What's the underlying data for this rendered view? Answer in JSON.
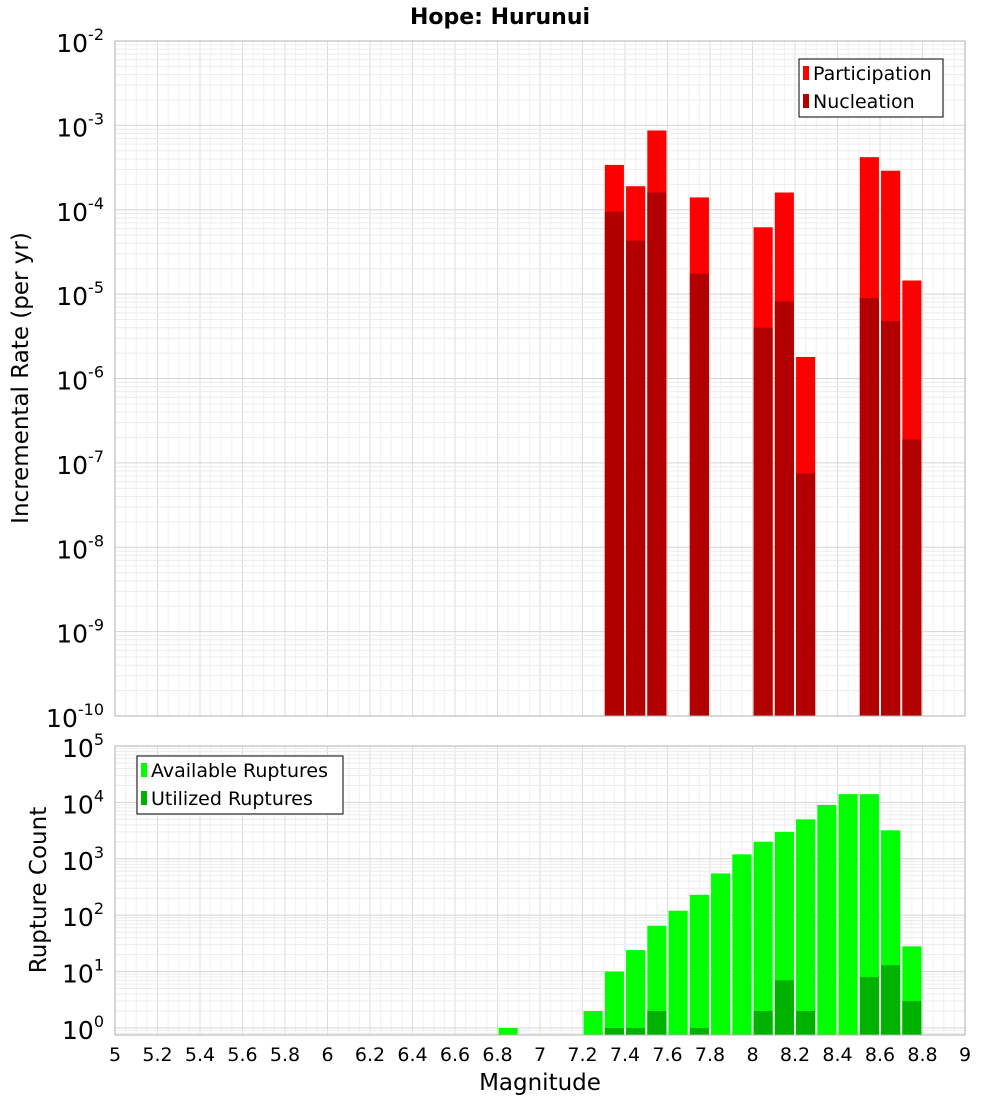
{
  "chart_data": [
    {
      "type": "bar",
      "title": "Hope: Hurunui",
      "ylabel": "Incremental Rate (per yr)",
      "xlabel": "",
      "xlim": [
        5,
        9
      ],
      "ylim": [
        1e-10,
        0.01
      ],
      "y_scale": "log",
      "y_tick_labels": [
        {
          "base": "10",
          "exp": "-2"
        },
        {
          "base": "10",
          "exp": "-3"
        },
        {
          "base": "10",
          "exp": "-4"
        },
        {
          "base": "10",
          "exp": "-5"
        },
        {
          "base": "10",
          "exp": "-6"
        },
        {
          "base": "10",
          "exp": "-7"
        },
        {
          "base": "10",
          "exp": "-8"
        },
        {
          "base": "10",
          "exp": "-9"
        },
        {
          "base": "10",
          "exp": "-10"
        }
      ],
      "grid": true,
      "legend_position": "top-right",
      "x": [
        7.35,
        7.45,
        7.55,
        7.75,
        8.05,
        8.15,
        8.25,
        8.55,
        8.65,
        8.75
      ],
      "series": [
        {
          "name": "Participation",
          "color": "#ff0000",
          "values": [
            0.00034,
            0.00019,
            0.00087,
            0.00014,
            6.2e-05,
            0.00016,
            1.8e-06,
            0.00042,
            0.00029,
            1.45e-05
          ]
        },
        {
          "name": "Nucleation",
          "color": "#b20000",
          "values": [
            9.5e-05,
            4.3e-05,
            0.00016,
            1.75e-05,
            4e-06,
            8.2e-06,
            7.5e-08,
            9e-06,
            4.8e-06,
            1.9e-07
          ]
        }
      ]
    },
    {
      "type": "bar",
      "title": "",
      "ylabel": "Rupture Count",
      "xlabel": "Magnitude",
      "xlim": [
        5,
        9
      ],
      "ylim": [
        0.75,
        100000.0
      ],
      "y_scale": "log",
      "x_tick_labels": [
        "5",
        "5.2",
        "5.4",
        "5.6",
        "5.8",
        "6",
        "6.2",
        "6.4",
        "6.6",
        "6.8",
        "7",
        "7.2",
        "7.4",
        "7.6",
        "7.8",
        "8",
        "8.2",
        "8.4",
        "8.6",
        "8.8",
        "9"
      ],
      "y_tick_labels": [
        {
          "base": "10",
          "exp": "5"
        },
        {
          "base": "10",
          "exp": "4"
        },
        {
          "base": "10",
          "exp": "3"
        },
        {
          "base": "10",
          "exp": "2"
        },
        {
          "base": "10",
          "exp": "1"
        },
        {
          "base": "10",
          "exp": "0"
        }
      ],
      "grid": true,
      "legend_position": "top-left",
      "x": [
        6.85,
        7.25,
        7.35,
        7.45,
        7.55,
        7.65,
        7.75,
        7.85,
        7.95,
        8.05,
        8.15,
        8.25,
        8.35,
        8.45,
        8.55,
        8.65,
        8.75
      ],
      "series": [
        {
          "name": "Available Ruptures",
          "color": "#00ff00",
          "values": [
            1,
            2,
            10,
            24,
            65,
            120,
            230,
            550,
            1200,
            2000,
            3000,
            5000,
            9000,
            14000,
            14000,
            3200,
            28
          ]
        },
        {
          "name": "Utilized Ruptures",
          "color": "#00b200",
          "values": [
            null,
            null,
            1,
            1,
            2,
            null,
            1,
            null,
            null,
            2,
            7,
            2,
            null,
            null,
            8,
            13,
            3
          ]
        }
      ]
    }
  ]
}
